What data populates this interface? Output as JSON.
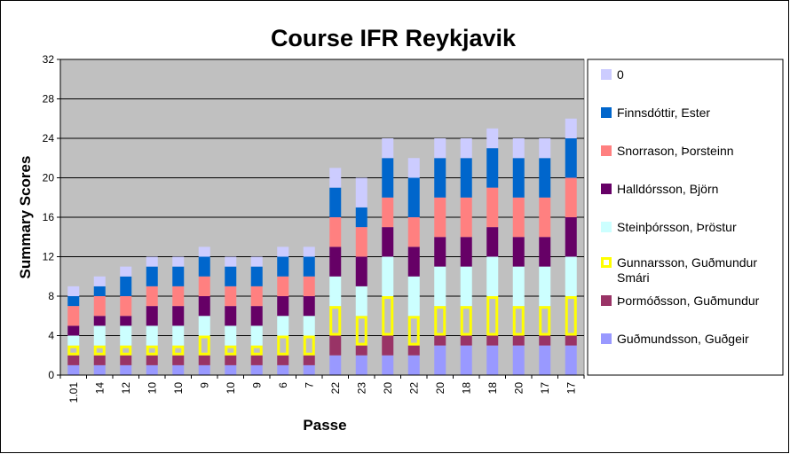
{
  "chart_data": {
    "type": "bar",
    "stacked": true,
    "title": "Course IFR Reykjavik",
    "xlabel": "Passe",
    "ylabel": "Summary Scores",
    "ylim": [
      0,
      32
    ],
    "yticks": [
      0,
      4,
      8,
      12,
      16,
      20,
      24,
      28,
      32
    ],
    "grid": true,
    "legend_position": "right",
    "categories": [
      "1.01",
      "14",
      "12",
      "10",
      "10",
      "9",
      "10",
      "9",
      "6",
      "7",
      "22",
      "23",
      "20",
      "22",
      "20",
      "18",
      "18",
      "20",
      "17",
      "17"
    ],
    "series": [
      {
        "name": "Guðmundsson, Guðgeir",
        "color": "#9999ff",
        "values": [
          1,
          1,
          1,
          1,
          1,
          1,
          1,
          1,
          1,
          1,
          2,
          2,
          2,
          2,
          3,
          3,
          3,
          3,
          3,
          3
        ]
      },
      {
        "name": "Þormóðsson, Guðmundur",
        "color": "#993366",
        "values": [
          1,
          1,
          1,
          1,
          1,
          1,
          1,
          1,
          1,
          1,
          2,
          1,
          2,
          1,
          1,
          1,
          1,
          1,
          1,
          1
        ]
      },
      {
        "name": "Gunnarsson, Guðmundur Smári",
        "color": "#ffff00",
        "hollow": true,
        "values": [
          1,
          1,
          1,
          1,
          1,
          2,
          1,
          1,
          2,
          2,
          3,
          3,
          4,
          3,
          3,
          3,
          4,
          3,
          3,
          4
        ]
      },
      {
        "name": "Steinþórsson, Þröstur",
        "color": "#ccffff",
        "values": [
          1,
          2,
          2,
          2,
          2,
          2,
          2,
          2,
          2,
          2,
          3,
          3,
          4,
          4,
          4,
          4,
          4,
          4,
          4,
          4
        ]
      },
      {
        "name": "Halldórsson, Björn",
        "color": "#660066",
        "values": [
          1,
          1,
          1,
          2,
          2,
          2,
          2,
          2,
          2,
          2,
          3,
          3,
          3,
          3,
          3,
          3,
          3,
          3,
          3,
          4
        ]
      },
      {
        "name": "Snorrason, Þorsteinn",
        "color": "#ff8080",
        "values": [
          2,
          2,
          2,
          2,
          2,
          2,
          2,
          2,
          2,
          2,
          3,
          3,
          3,
          3,
          4,
          4,
          4,
          4,
          4,
          4
        ]
      },
      {
        "name": "Finnsdóttir, Ester",
        "color": "#0066cc",
        "values": [
          1,
          1,
          2,
          2,
          2,
          2,
          2,
          2,
          2,
          2,
          3,
          2,
          4,
          4,
          4,
          4,
          4,
          4,
          4,
          4
        ]
      },
      {
        "name": "0",
        "color": "#ccccff",
        "values": [
          1,
          1,
          1,
          1,
          1,
          1,
          1,
          1,
          1,
          1,
          2,
          3,
          2,
          2,
          2,
          2,
          2,
          2,
          2,
          2
        ]
      }
    ]
  }
}
